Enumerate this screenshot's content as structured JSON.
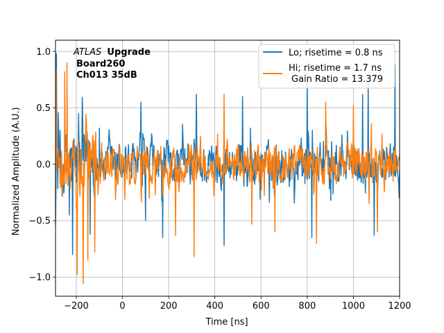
{
  "chart_data": {
    "type": "line",
    "title": "",
    "xlabel": "Time [ns]",
    "ylabel": "Normalized Amplitude (A.U.)",
    "xlim": [
      -290,
      1200
    ],
    "ylim": [
      -1.17,
      1.1
    ],
    "xticks": [
      -200,
      0,
      200,
      400,
      600,
      800,
      1000,
      1200
    ],
    "xtick_labels": [
      "−200",
      "0",
      "200",
      "400",
      "600",
      "800",
      "1000",
      "1200"
    ],
    "yticks": [
      -1.0,
      -0.5,
      0.0,
      0.5,
      1.0
    ],
    "ytick_labels": [
      "−1.0",
      "−0.5",
      "0.0",
      "0.5",
      "1.0"
    ],
    "grid": true,
    "legend_position": "top-right",
    "annotation": {
      "atlas": "ATLAS",
      "upgrade": "Upgrade",
      "board": "Board260",
      "channel": "Ch013 35dB"
    },
    "legend_extra": "Gain Ratio = 13.379",
    "series": [
      {
        "name": "Lo; risetime = 0.8 ns",
        "color": "#1f77b4",
        "description": "noise waveform",
        "x_range": [
          -290,
          1200
        ],
        "sample_step_ns": 2,
        "typical_amplitude": 0.25,
        "peaks": [
          {
            "x": -285,
            "y": 0.98
          },
          {
            "x": -270,
            "y": 0.3
          },
          {
            "x": -230,
            "y": -0.45
          },
          {
            "x": -215,
            "y": -0.8
          },
          {
            "x": -190,
            "y": 0.45
          },
          {
            "x": -140,
            "y": -0.62
          },
          {
            "x": -100,
            "y": 0.32
          },
          {
            "x": 80,
            "y": 0.55
          },
          {
            "x": 100,
            "y": -0.5
          },
          {
            "x": 175,
            "y": -0.65
          },
          {
            "x": 320,
            "y": 0.62
          },
          {
            "x": 440,
            "y": -0.72
          },
          {
            "x": 520,
            "y": 0.6
          },
          {
            "x": 800,
            "y": 0.82
          },
          {
            "x": 820,
            "y": -0.65
          },
          {
            "x": 1040,
            "y": 0.62
          },
          {
            "x": 1065,
            "y": 0.72
          },
          {
            "x": 1090,
            "y": -0.63
          },
          {
            "x": 1180,
            "y": 0.88
          }
        ]
      },
      {
        "name": "Hi; risetime = 1.7 ns",
        "color": "#ff7f0e",
        "description": "noise waveform",
        "x_range": [
          -290,
          1200
        ],
        "sample_step_ns": 2,
        "typical_amplitude": 0.22,
        "peaks": [
          {
            "x": -288,
            "y": 0.85
          },
          {
            "x": -250,
            "y": 0.82
          },
          {
            "x": -240,
            "y": 0.9
          },
          {
            "x": -195,
            "y": -0.98
          },
          {
            "x": -170,
            "y": -1.06
          },
          {
            "x": -150,
            "y": -0.85
          },
          {
            "x": -120,
            "y": -0.78
          },
          {
            "x": 230,
            "y": -0.63
          },
          {
            "x": 310,
            "y": -0.82
          },
          {
            "x": 440,
            "y": 0.62
          },
          {
            "x": 560,
            "y": -0.53
          },
          {
            "x": 660,
            "y": -0.6
          },
          {
            "x": 840,
            "y": -0.7
          },
          {
            "x": 880,
            "y": 0.55
          },
          {
            "x": 1000,
            "y": 0.52
          },
          {
            "x": 1105,
            "y": -0.6
          }
        ]
      }
    ]
  }
}
